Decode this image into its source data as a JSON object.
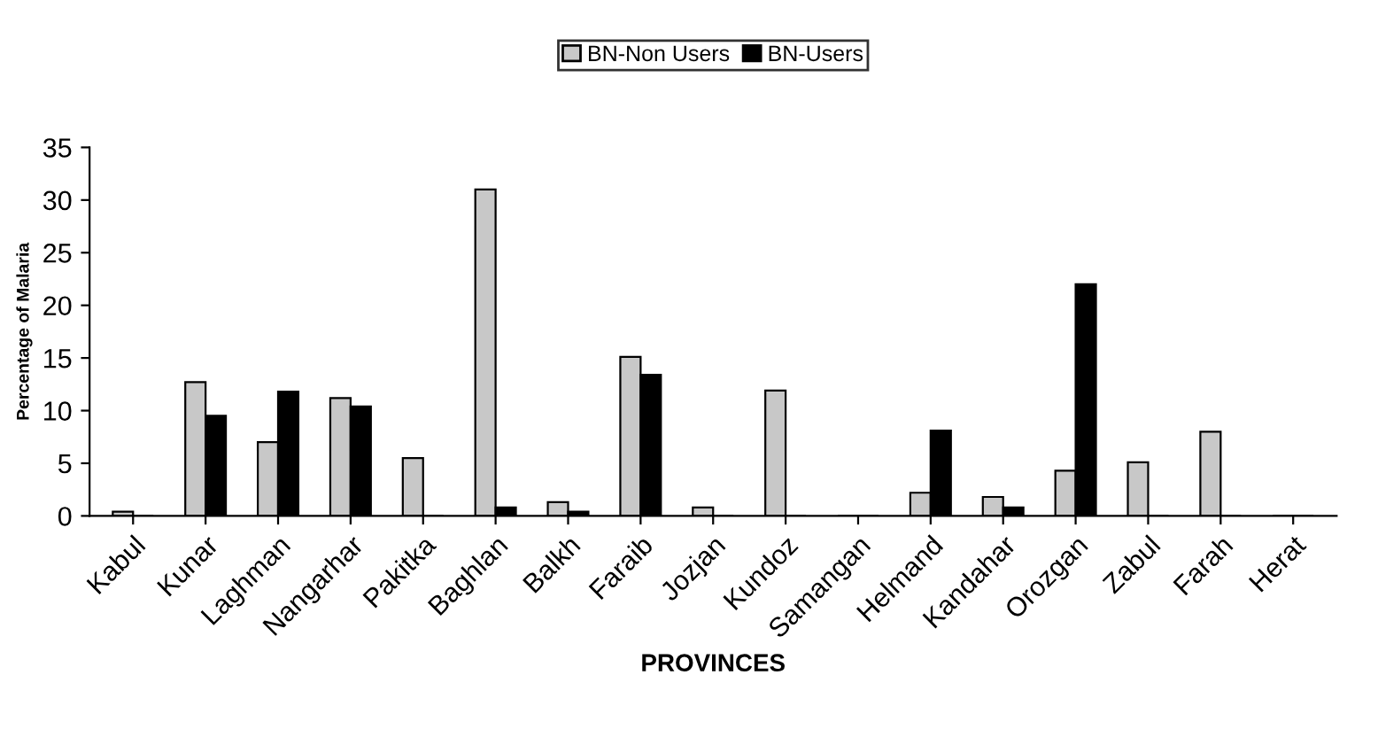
{
  "chart_data": {
    "type": "bar",
    "xlabel": "PROVINCES",
    "ylabel": "Percentage of Malaria",
    "categories": [
      "Kabul",
      "Kunar",
      "Laghman",
      "Nangarhar",
      "Pakitka",
      "Baghlan",
      "Balkh",
      "Faraib",
      "Jozjan",
      "Kundoz",
      "Samangan",
      "Helmand",
      "Kandahar",
      "Orozgan",
      "Zabul",
      "Farah",
      "Herat"
    ],
    "series": [
      {
        "name": "BN-Non Users",
        "color": "#c8c8c8",
        "values": [
          0.4,
          12.7,
          7.0,
          11.2,
          5.5,
          31.0,
          1.3,
          15.1,
          0.8,
          11.9,
          0,
          2.2,
          1.8,
          4.3,
          5.1,
          8.0,
          0
        ]
      },
      {
        "name": "BN-Users",
        "color": "#000000",
        "values": [
          0,
          9.5,
          11.8,
          10.4,
          0,
          0.8,
          0.4,
          13.4,
          0,
          0,
          0,
          8.1,
          0.8,
          22.0,
          0,
          0,
          0
        ]
      }
    ],
    "ylim": [
      0,
      35
    ],
    "yticks": [
      0,
      5,
      10,
      15,
      20,
      25,
      30,
      35
    ],
    "grid": false,
    "legend": "top"
  }
}
